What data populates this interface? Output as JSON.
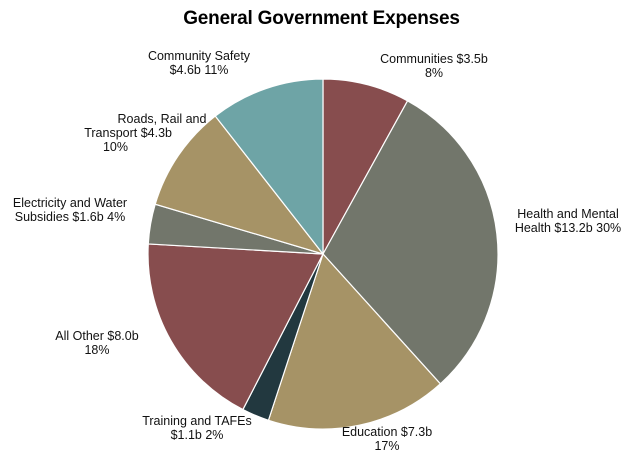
{
  "chart_data": {
    "type": "pie",
    "title": "General Government Expenses",
    "slices": [
      {
        "label": "Communities",
        "value_label": "$3.5b",
        "percent_label": "8%",
        "value": 3.5,
        "color": "#874d4e"
      },
      {
        "label": "Health and Mental Health",
        "value_label": "$13.2b",
        "percent_label": "30%",
        "value": 13.2,
        "color": "#72766b"
      },
      {
        "label": "Education",
        "value_label": "$7.3b",
        "percent_label": "17%",
        "value": 7.3,
        "color": "#a69366"
      },
      {
        "label": "Training and TAFEs",
        "value_label": "$1.1b",
        "percent_label": "2%",
        "value": 1.1,
        "color": "#22383f"
      },
      {
        "label": "All Other",
        "value_label": "$8.0b",
        "percent_label": "18%",
        "value": 8.0,
        "color": "#874d4e"
      },
      {
        "label": "Electricity and Water Subsidies",
        "value_label": "$1.6b",
        "percent_label": "4%",
        "value": 1.6,
        "color": "#72766b"
      },
      {
        "label": "Roads, Rail and Transport",
        "value_label": "$4.3b",
        "percent_label": "10%",
        "value": 4.3,
        "color": "#a69366"
      },
      {
        "label": "Community Safety",
        "value_label": "$4.6b",
        "percent_label": "11%",
        "value": 4.6,
        "color": "#6ea4a6"
      }
    ],
    "label_lines": [
      [
        "Communities  $3.5b",
        "8%"
      ],
      [
        "Health and Mental",
        "Health   $13.2b   30%"
      ],
      [
        "Education   $7.3b",
        "17%"
      ],
      [
        "Training and TAFEs",
        "$1.1b   2%"
      ],
      [
        "All Other   $8.0b",
        "18%"
      ],
      [
        "Electricity and Water",
        "Subsidies   $1.6b   4%"
      ],
      [
        "Roads, Rail and",
        "Transport   $4.3b",
        "10%"
      ],
      [
        "Community Safety",
        "$4.6b   11%"
      ]
    ]
  }
}
